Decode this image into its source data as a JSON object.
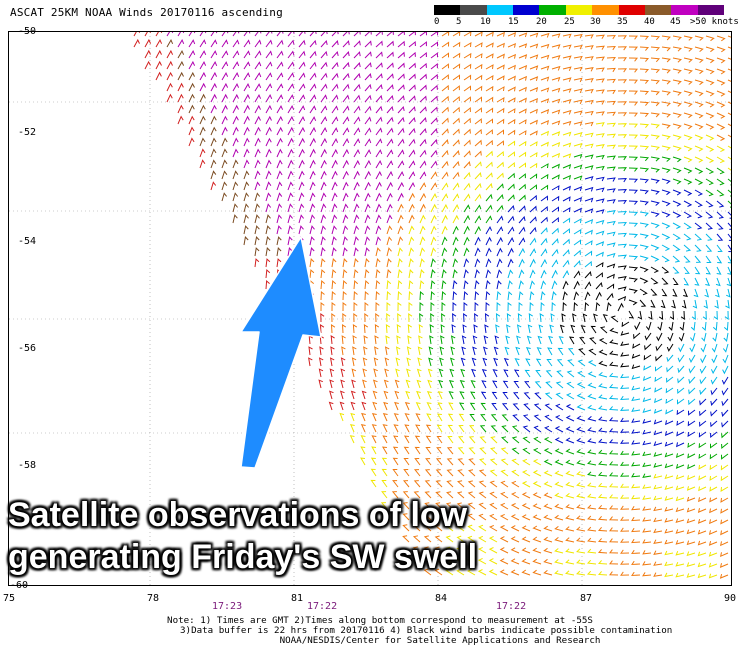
{
  "header": {
    "title": "ASCAT 25KM NOAA Winds 20170116 ascending"
  },
  "legend": {
    "labels": [
      "0",
      "5",
      "10",
      "15",
      "20",
      "25",
      "30",
      "35",
      "40",
      "45",
      ">50 knots"
    ],
    "colors": [
      "#000000",
      "#4a4a4a",
      "#00c8ff",
      "#0000d0",
      "#00b000",
      "#f0f000",
      "#ff9000",
      "#e00000",
      "#8a5a2a",
      "#c000c0",
      "#60007a"
    ]
  },
  "map": {
    "y_labels": [
      "-50",
      "-52",
      "-54",
      "-56",
      "-58",
      "-60"
    ],
    "x_labels": [
      "75",
      "78",
      "81",
      "84",
      "87",
      "90"
    ],
    "pass_times": [
      "17:23",
      "17:22",
      "17:22"
    ],
    "arrow_color": "#1e8cff",
    "swath_colors": {
      "purple": "#b000b0",
      "red": "#d22020",
      "orange": "#f07a10",
      "yellow": "#f0e600",
      "green": "#00a800",
      "blue": "#0010c8",
      "cyan": "#00b8e8",
      "black": "#000000",
      "brown": "#7a4a20"
    }
  },
  "notes": {
    "line1": "Note: 1) Times are GMT 2)Times along bottom correspond to measurement at -55S",
    "line2": "3)Data buffer is 22 hrs from 20170116 4) Black wind barbs indicate possible contamination",
    "line3": "NOAA/NESDIS/Center for Satellite Applications and Research"
  },
  "overlay": {
    "line1": "Satellite observations of low",
    "line2": "generating Friday's SW swell"
  }
}
